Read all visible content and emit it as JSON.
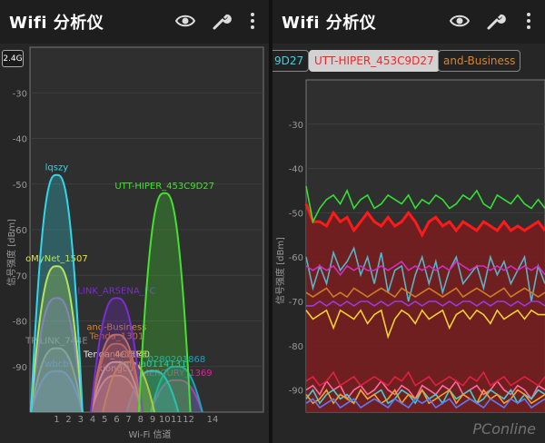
{
  "left": {
    "app_title": "Wifi 分析仪",
    "band_button": "2.4G",
    "icons": [
      "eye-icon",
      "wrench-icon",
      "overflow-menu-icon"
    ],
    "chart_data": {
      "type": "area",
      "title": "",
      "xlabel": "Wi-Fi 信道",
      "ylabel": "信号强度 [dBm]",
      "ylim": [
        -100,
        -20
      ],
      "y_ticks": [
        "-30",
        "-40",
        "-50",
        "-60",
        "-70",
        "-80",
        "-90"
      ],
      "x_ticks": [
        "1",
        "2",
        "3",
        "4",
        "5",
        "6",
        "7",
        "8",
        "9",
        "10",
        "11",
        "12",
        "14"
      ],
      "series": [
        {
          "name": "lqszy",
          "channel": 1,
          "peak": -48,
          "color": "#33d6e8"
        },
        {
          "name": "UTT-HIPER_453C9D27",
          "channel": 10,
          "peak": -52,
          "color": "#45e032"
        },
        {
          "name": "oMyNet_1507",
          "channel": 1,
          "peak": -68,
          "color": "#e8e822"
        },
        {
          "name": "",
          "channel": 1,
          "peak": -75,
          "color": "#8a2be2"
        },
        {
          "name": "LINK_ARSENA_FC",
          "channel": 6,
          "peak": -75,
          "color": "#7a2fd0"
        },
        {
          "name": "and-Business",
          "channel": 6,
          "peak": -83,
          "color": "#d28a3a"
        },
        {
          "name": "Tenda_1301",
          "channel": 6,
          "peak": -85,
          "color": "#d8702a"
        },
        {
          "name": "TP-LINK_744E",
          "channel": 1,
          "peak": -86,
          "color": "#8a8a8a"
        },
        {
          "name": "Tenda_4C6040",
          "channel": 6,
          "peak": -89,
          "color": "#e8e8e8"
        },
        {
          "name": "ntedEEE",
          "channel": 7,
          "peak": -89,
          "color": "#e0c040"
        },
        {
          "name": "wbcb",
          "channel": 1,
          "peak": -91,
          "color": "#4a64ff"
        },
        {
          "name": "xiongcui",
          "channel": 6,
          "peak": -92,
          "color": "#ffb0b0"
        },
        {
          "name": "jiahua0114131",
          "channel": 9,
          "peak": -91,
          "color": "#20c0e0"
        },
        {
          "name": "0280201868",
          "channel": 11,
          "peak": -90,
          "color": "#20a0c0"
        },
        {
          "name": "MERCURY_1369",
          "channel": 11,
          "peak": -93,
          "color": "#e020a0"
        }
      ]
    }
  },
  "right": {
    "app_title": "Wifi 分析仪",
    "icons": [
      "eye-icon",
      "wrench-icon",
      "overflow-menu-icon"
    ],
    "chips": [
      {
        "label": "9D27",
        "color": "#33d6e8",
        "selected": false
      },
      {
        "label": "UTT-HIPER_453C9D27",
        "color": "#ff2020",
        "selected": true
      },
      {
        "label": "and-Business",
        "color": "#d8862f",
        "selected": false
      }
    ],
    "chart_data": {
      "type": "line",
      "title": "",
      "xlabel": "",
      "ylabel": "信号强度 [dBm]",
      "ylim": [
        -95,
        -20
      ],
      "y_ticks": [
        "-30",
        "-40",
        "-50",
        "-60",
        "-70",
        "-80",
        "-90"
      ],
      "series": [
        {
          "name": "UTT-HIPER_453C9D27",
          "color": "#ff1a1a",
          "fill": true,
          "values": [
            -48,
            -52,
            -52,
            -53,
            -50,
            -52,
            -51,
            -54,
            -52,
            -50,
            -52,
            -53,
            -51,
            -53,
            -52,
            -50,
            -52,
            -55,
            -52,
            -51,
            -53,
            -52,
            -54,
            -52,
            -53,
            -54,
            -52,
            -53,
            -54,
            -52,
            -54,
            -53,
            -54,
            -53,
            -52,
            -54
          ]
        },
        {
          "name": "",
          "color": "#33e033",
          "values": [
            -44,
            -52,
            -49,
            -47,
            -46,
            -48,
            -45,
            -49,
            -47,
            -46,
            -49,
            -48,
            -46,
            -47,
            -48,
            -46,
            -49,
            -47,
            -48,
            -46,
            -47,
            -49,
            -48,
            -46,
            -47,
            -45,
            -48,
            -49,
            -46,
            -47,
            -48,
            -46,
            -48,
            -49,
            -47,
            -49
          ]
        },
        {
          "name": "",
          "color": "#5ab4c8",
          "values": [
            -60,
            -67,
            -62,
            -66,
            -59,
            -63,
            -61,
            -58,
            -64,
            -60,
            -66,
            -59,
            -68,
            -63,
            -62,
            -70,
            -64,
            -60,
            -66,
            -61,
            -68,
            -63,
            -60,
            -66,
            -64,
            -62,
            -67,
            -60,
            -64,
            -61,
            -66,
            -63,
            -60,
            -70,
            -62,
            -66
          ]
        },
        {
          "name": "",
          "color": "#d030c0",
          "values": [
            -62,
            -63,
            -62,
            -63,
            -62,
            -64,
            -62,
            -63,
            -62,
            -63,
            -63,
            -62,
            -63,
            -62,
            -61,
            -63,
            -62,
            -63,
            -62,
            -63,
            -62,
            -63,
            -61,
            -62,
            -63,
            -62,
            -62,
            -63,
            -62,
            -63,
            -62,
            -63,
            -62,
            -63,
            -62,
            -64
          ]
        },
        {
          "name": "",
          "color": "#9a3ae0",
          "values": [
            -71,
            -71,
            -70,
            -71,
            -70,
            -71,
            -70,
            -71,
            -70,
            -70,
            -71,
            -70,
            -71,
            -70,
            -70,
            -71,
            -70,
            -71,
            -70,
            -70,
            -71,
            -70,
            -71,
            -70,
            -70,
            -71,
            -70,
            -71,
            -70,
            -70,
            -71,
            -70,
            -71,
            -70,
            -70,
            -71
          ]
        },
        {
          "name": "",
          "color": "#f0d030",
          "values": [
            -72,
            -74,
            -73,
            -72,
            -76,
            -72,
            -73,
            -74,
            -72,
            -75,
            -73,
            -72,
            -78,
            -74,
            -72,
            -73,
            -75,
            -72,
            -74,
            -73,
            -72,
            -76,
            -73,
            -72,
            -74,
            -72,
            -73,
            -75,
            -72,
            -74,
            -73,
            -72,
            -74,
            -72,
            -73,
            -73
          ]
        },
        {
          "name": "",
          "color": "#d07a2a",
          "values": [
            -68,
            -69,
            -68,
            -67,
            -69,
            -68,
            -69,
            -67,
            -68,
            -69,
            -68,
            -67,
            -68,
            -69,
            -67,
            -68,
            -69,
            -68,
            -67,
            -68,
            -69,
            -68,
            -67,
            -69,
            -68,
            -67,
            -68,
            -69,
            -68,
            -67,
            -69,
            -68,
            -67,
            -68,
            -69,
            -68
          ]
        },
        {
          "name": "",
          "color": "#ff6aa0",
          "values": [
            -90,
            -89,
            -91,
            -88,
            -90,
            -89,
            -92,
            -90,
            -89,
            -91,
            -90,
            -88,
            -90,
            -91,
            -89,
            -90,
            -92,
            -89,
            -90,
            -91,
            -89,
            -90,
            -88,
            -91,
            -90,
            -89,
            -91,
            -90,
            -88,
            -90,
            -91,
            -89,
            -90,
            -92,
            -89,
            -90
          ]
        },
        {
          "name": "",
          "color": "#40d0d0",
          "values": [
            -92,
            -90,
            -93,
            -91,
            -90,
            -92,
            -91,
            -93,
            -90,
            -92,
            -91,
            -90,
            -93,
            -92,
            -90,
            -91,
            -93,
            -90,
            -92,
            -91,
            -93,
            -90,
            -92,
            -91,
            -90,
            -93,
            -92,
            -90,
            -91,
            -92,
            -90,
            -93,
            -91,
            -92,
            -90,
            -91
          ]
        },
        {
          "name": "",
          "color": "#f0a030",
          "values": [
            -91,
            -93,
            -92,
            -90,
            -93,
            -91,
            -92,
            -93,
            -90,
            -92,
            -91,
            -93,
            -92,
            -90,
            -93,
            -91,
            -92,
            -90,
            -93,
            -92,
            -91,
            -90,
            -93,
            -91,
            -92,
            -93,
            -90,
            -92,
            -91,
            -93,
            -92,
            -90,
            -91,
            -93,
            -92,
            -91
          ]
        },
        {
          "name": "",
          "color": "#5a7aff",
          "values": [
            -93,
            -92,
            -94,
            -93,
            -92,
            -94,
            -93,
            -92,
            -94,
            -93,
            -92,
            -93,
            -94,
            -92,
            -93,
            -94,
            -92,
            -93,
            -92,
            -94,
            -93,
            -92,
            -94,
            -93,
            -92,
            -93,
            -94,
            -92,
            -93,
            -94,
            -92,
            -93,
            -92,
            -94,
            -93,
            -92
          ]
        },
        {
          "name": "",
          "color": "#e02040",
          "values": [
            -88,
            -87,
            -89,
            -88,
            -86,
            -89,
            -88,
            -87,
            -89,
            -88,
            -87,
            -88,
            -89,
            -87,
            -88,
            -86,
            -89,
            -88,
            -87,
            -89,
            -88,
            -87,
            -88,
            -89,
            -87,
            -88,
            -86,
            -89,
            -88,
            -87,
            -89,
            -88,
            -87,
            -88,
            -89,
            -87
          ]
        }
      ]
    }
  },
  "watermark": "PConline"
}
